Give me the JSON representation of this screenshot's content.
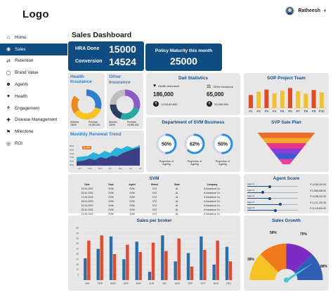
{
  "header": {
    "logo": "Logo",
    "user_name": "Ratheesh"
  },
  "sidebar": {
    "items": [
      {
        "label": "Home",
        "icon": "home-icon"
      },
      {
        "label": "Sales",
        "icon": "sales-icon"
      },
      {
        "label": "Retention",
        "icon": "retention-icon"
      },
      {
        "label": "Brand Value",
        "icon": "brand-value-icon"
      },
      {
        "label": "Agents",
        "icon": "agents-icon"
      },
      {
        "label": "Health",
        "icon": "health-icon"
      },
      {
        "label": "Engagement",
        "icon": "engagement-icon"
      },
      {
        "label": "Disease Management",
        "icon": "disease-management-icon"
      },
      {
        "label": "Milestone",
        "icon": "milestone-icon"
      },
      {
        "label": "ROI",
        "icon": "roi-icon"
      }
    ],
    "active_index": 1
  },
  "page": {
    "title": "Sales Dashboard"
  },
  "kpis": {
    "hra_label": "HRA Done",
    "hra_value": "15000",
    "conv_label": "Conversion",
    "conv_value": "14524",
    "policy_label": "Policy Maturity this month",
    "policy_value": "25000"
  },
  "health_insurance": {
    "title": "Health Insurance",
    "legend": [
      {
        "label": "Vehicles",
        "value": "18000"
      },
      {
        "label": "Premium",
        "value": "16,280,800"
      }
    ],
    "donut": [
      0.3,
      0.35,
      0.2,
      0.15
    ],
    "colors": [
      "#2f7fd0",
      "#f7c325",
      "#e98a1c",
      "#e7e7e7"
    ]
  },
  "other_insurance": {
    "title": "Other Insurance",
    "legend": [
      {
        "label": "Number",
        "value": "18000"
      },
      {
        "label": "Premium",
        "value": "16,280,800"
      }
    ],
    "donut": [
      0.3,
      0.25,
      0.2,
      0.25
    ],
    "colors": [
      "#8a5cc6",
      "#26a9a0",
      "#2a3f5f",
      "#bdbdbd"
    ]
  },
  "daily_stats": {
    "title": "Dail Statistics",
    "health_label": "Health Insurance",
    "health_count": "186,000",
    "health_amount": "1,216,80,600",
    "other_label": "Other Insurance",
    "other_count": "65,000",
    "other_amount": "15,280,600"
  },
  "sop_team": {
    "title": "SOP Project Team",
    "bars": [
      {
        "label": "P1",
        "value": 0.62,
        "color": "#e24a1f"
      },
      {
        "label": "P2",
        "value": 0.78,
        "color": "#f4c12e"
      },
      {
        "label": "P3",
        "value": 0.88,
        "color": "#e24a1f"
      },
      {
        "label": "P4",
        "value": 0.7,
        "color": "#f4c12e"
      },
      {
        "label": "P5",
        "value": 0.82,
        "color": "#f4c12e"
      },
      {
        "label": "P6",
        "value": 0.95,
        "color": "#e24a1f"
      },
      {
        "label": "P7",
        "value": 0.8,
        "color": "#f4c12e"
      },
      {
        "label": "P8",
        "value": 0.68,
        "color": "#f4c12e"
      },
      {
        "label": "P9",
        "value": 0.86,
        "color": "#e24a1f"
      },
      {
        "label": "P10",
        "value": 0.74,
        "color": "#f4c12e"
      }
    ]
  },
  "renewal": {
    "title": "Monthly Renewal Trend",
    "badge": "8,284",
    "ylabels": [
      "8500",
      "8000",
      "7500",
      "7000",
      "6500",
      "6000"
    ],
    "xlabels": [
      "Jan",
      "Feb",
      "Mar",
      "Apr",
      "May",
      "Jun",
      "Jul"
    ]
  },
  "svm_business": {
    "title": "Department of SVM Business",
    "items": [
      {
        "pct": "50%",
        "value": 0.5,
        "label": "Proportion of Ageing",
        "color": "#2f8fd6"
      },
      {
        "pct": "62%",
        "value": 0.62,
        "label": "Proportion of Ageing",
        "color": "#2f8fd6"
      },
      {
        "pct": "50%",
        "value": 0.5,
        "label": "Proportion of Ageing",
        "color": "#2f8fd6"
      }
    ]
  },
  "svp_plan": {
    "title": "SVP Sale Plan",
    "layers": [
      "#f06a2a",
      "#f6a52a",
      "#e8338a",
      "#8b3bd6",
      "#3b5bd6",
      "#e93f9d"
    ]
  },
  "svm_table": {
    "title": "SVM",
    "columns": [
      "Date",
      "Dept",
      "Agent",
      "Brand",
      "State",
      "Company"
    ],
    "rows": [
      [
        "13-04-2023",
        "SVM",
        "SVM",
        "XYZ",
        "AL",
        "A Insurance Co."
      ],
      [
        "22-04-2023",
        "SVM",
        "SVM",
        "XYZ",
        "AL",
        "A Insurance Co."
      ],
      [
        "17-05-2023",
        "SVM",
        "SVM",
        "XYZ",
        "AL",
        "A Insurance Co."
      ],
      [
        "18-04-2023",
        "SVM",
        "SVM",
        "XYZ",
        "AL",
        "A Insurance Co."
      ],
      [
        "21-04-2023",
        "SVM",
        "SVM",
        "XYZ",
        "AL",
        "A Insurance Co."
      ],
      [
        "23-04-2023",
        "SVM",
        "SVM",
        "XYZ",
        "AL",
        "A Insurance Co."
      ],
      [
        "17-05-2023",
        "SVM",
        "SVM",
        "XYZ",
        "AL",
        "A Insurance Co."
      ]
    ]
  },
  "agent_score": {
    "title": "Agent Score",
    "agents": [
      {
        "label": "Agent 1",
        "amount": "₹ 10,58,110.00",
        "value": 0.45
      },
      {
        "label": "Agent 2",
        "amount": "₹ 2,055,008.00",
        "value": 0.3
      },
      {
        "label": "Agent 3",
        "amount": "₹ 10,58,110.00",
        "value": 0.45
      },
      {
        "label": "Agent 4",
        "amount": "₹ 21,21,376.45",
        "value": 0.65
      },
      {
        "label": "Agent 5",
        "amount": "₹ 20,15,624.00",
        "value": 0.55
      }
    ]
  },
  "sales_broker": {
    "title": "Sales per broker",
    "months": [
      "JAN",
      "FEB",
      "MAR",
      "APR",
      "MAY",
      "JUN",
      "JUL",
      "AUG",
      "SEP",
      "OCT",
      "NOV",
      "DEC"
    ],
    "yticks": [
      "50",
      "45",
      "40",
      "35",
      "30",
      "25",
      "20",
      "15",
      "10",
      "5"
    ]
  },
  "sales_growth": {
    "title": "Sales Growth",
    "labels": [
      "38%",
      "58%",
      "70%",
      "88%"
    ],
    "colors": [
      "#f6c323",
      "#ef7a1a",
      "#7c2bc4",
      "#2e5fb5"
    ]
  },
  "chart_data": [
    {
      "type": "bar",
      "title": "Sales per broker",
      "categories": [
        "JAN",
        "FEB",
        "MAR",
        "APR",
        "MAY",
        "JUN",
        "JUL",
        "AUG",
        "SEP",
        "OCT",
        "NOV",
        "DEC"
      ],
      "series": [
        {
          "values": [
            21,
            30,
            42,
            20,
            37,
            8,
            43,
            18,
            26,
            42,
            15,
            32
          ]
        },
        {
          "values": [
            38,
            43,
            25,
            34,
            27,
            36,
            28,
            40,
            13,
            29,
            38,
            18
          ]
        }
      ],
      "ylim": [
        0,
        50
      ]
    },
    {
      "type": "bar",
      "title": "SOP Project Team",
      "categories": [
        "P1",
        "P2",
        "P3",
        "P4",
        "P5",
        "P6",
        "P7",
        "P8",
        "P9",
        "P10"
      ],
      "values": [
        0.62,
        0.78,
        0.88,
        0.7,
        0.82,
        0.95,
        0.8,
        0.68,
        0.86,
        0.74
      ]
    }
  ]
}
